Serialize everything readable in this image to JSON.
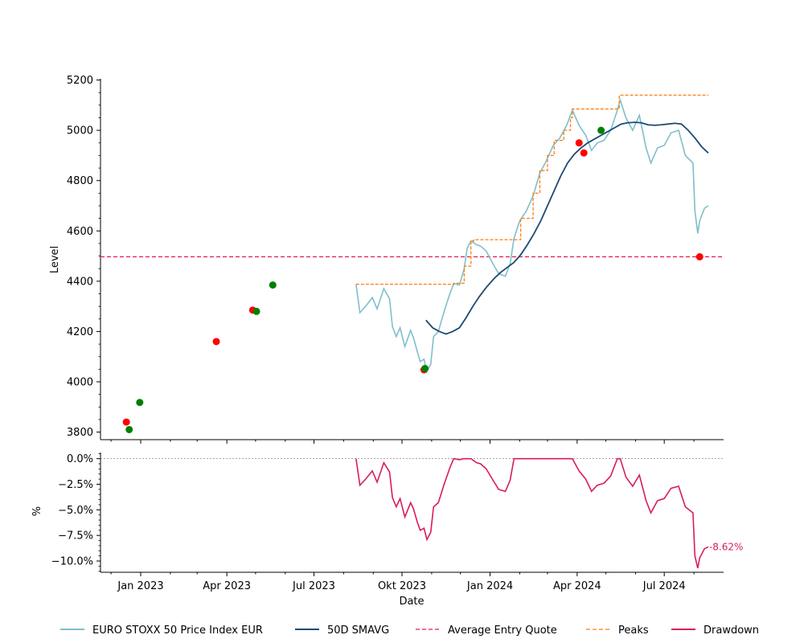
{
  "chart_data": [
    {
      "type": "line",
      "ylabel": "Level",
      "ylim": [
        3770,
        5205
      ],
      "x_ticks": [
        "Jan 2023",
        "Apr 2023",
        "Jul 2023",
        "Okt 2023",
        "Jan 2024",
        "Apr 2024",
        "Jul 2024"
      ],
      "y_ticks": [
        "3800",
        "4000",
        "4200",
        "4400",
        "4600",
        "4800",
        "5000",
        "5200"
      ],
      "avg_entry_quote": 4497,
      "series": [
        {
          "name": "EURO STOXX 50 Price Index EUR",
          "color": "#7fbfca",
          "points": [
            [
              "2023-08-14",
              4388
            ],
            [
              "2023-08-18",
              4275
            ],
            [
              "2023-08-24",
              4300
            ],
            [
              "2023-08-31",
              4335
            ],
            [
              "2023-09-05",
              4290
            ],
            [
              "2023-09-12",
              4370
            ],
            [
              "2023-09-18",
              4330
            ],
            [
              "2023-09-21",
              4220
            ],
            [
              "2023-09-25",
              4180
            ],
            [
              "2023-09-29",
              4215
            ],
            [
              "2023-10-04",
              4140
            ],
            [
              "2023-10-10",
              4205
            ],
            [
              "2023-10-13",
              4175
            ],
            [
              "2023-10-17",
              4120
            ],
            [
              "2023-10-20",
              4080
            ],
            [
              "2023-10-24",
              4090
            ],
            [
              "2023-10-27",
              4040
            ],
            [
              "2023-10-31",
              4070
            ],
            [
              "2023-11-03",
              4180
            ],
            [
              "2023-11-08",
              4200
            ],
            [
              "2023-11-14",
              4280
            ],
            [
              "2023-11-20",
              4350
            ],
            [
              "2023-11-24",
              4390
            ],
            [
              "2023-11-30",
              4385
            ],
            [
              "2023-12-05",
              4450
            ],
            [
              "2023-12-08",
              4530
            ],
            [
              "2023-12-12",
              4560
            ],
            [
              "2023-12-18",
              4545
            ],
            [
              "2023-12-22",
              4540
            ],
            [
              "2023-12-28",
              4520
            ],
            [
              "2024-01-04",
              4470
            ],
            [
              "2024-01-10",
              4430
            ],
            [
              "2024-01-17",
              4420
            ],
            [
              "2024-01-22",
              4470
            ],
            [
              "2024-01-26",
              4570
            ],
            [
              "2024-02-01",
              4640
            ],
            [
              "2024-02-08",
              4680
            ],
            [
              "2024-02-15",
              4740
            ],
            [
              "2024-02-22",
              4830
            ],
            [
              "2024-02-29",
              4880
            ],
            [
              "2024-03-07",
              4940
            ],
            [
              "2024-03-14",
              4970
            ],
            [
              "2024-03-21",
              5020
            ],
            [
              "2024-03-27",
              5080
            ],
            [
              "2024-04-03",
              5020
            ],
            [
              "2024-04-10",
              4980
            ],
            [
              "2024-04-16",
              4920
            ],
            [
              "2024-04-22",
              4950
            ],
            [
              "2024-04-29",
              4960
            ],
            [
              "2024-05-06",
              5000
            ],
            [
              "2024-05-13",
              5080
            ],
            [
              "2024-05-16",
              5120
            ],
            [
              "2024-05-22",
              5050
            ],
            [
              "2024-05-29",
              5000
            ],
            [
              "2024-06-05",
              5060
            ],
            [
              "2024-06-12",
              4930
            ],
            [
              "2024-06-17",
              4870
            ],
            [
              "2024-06-24",
              4930
            ],
            [
              "2024-07-01",
              4940
            ],
            [
              "2024-07-08",
              4990
            ],
            [
              "2024-07-16",
              5000
            ],
            [
              "2024-07-23",
              4900
            ],
            [
              "2024-07-31",
              4870
            ],
            [
              "2024-08-02",
              4680
            ],
            [
              "2024-08-05",
              4590
            ],
            [
              "2024-08-07",
              4640
            ],
            [
              "2024-08-12",
              4690
            ],
            [
              "2024-08-16",
              4700
            ]
          ]
        },
        {
          "name": "50D SMAVG",
          "color": "#1b4a74",
          "points": [
            [
              "2023-10-26",
              4245
            ],
            [
              "2023-11-02",
              4215
            ],
            [
              "2023-11-09",
              4200
            ],
            [
              "2023-11-16",
              4190
            ],
            [
              "2023-11-23",
              4200
            ],
            [
              "2023-11-30",
              4215
            ],
            [
              "2023-12-07",
              4255
            ],
            [
              "2023-12-14",
              4300
            ],
            [
              "2023-12-21",
              4340
            ],
            [
              "2023-12-28",
              4375
            ],
            [
              "2024-01-05",
              4410
            ],
            [
              "2024-01-12",
              4435
            ],
            [
              "2024-01-19",
              4455
            ],
            [
              "2024-01-26",
              4475
            ],
            [
              "2024-02-02",
              4505
            ],
            [
              "2024-02-09",
              4545
            ],
            [
              "2024-02-16",
              4590
            ],
            [
              "2024-02-23",
              4640
            ],
            [
              "2024-03-01",
              4700
            ],
            [
              "2024-03-08",
              4760
            ],
            [
              "2024-03-15",
              4820
            ],
            [
              "2024-03-22",
              4870
            ],
            [
              "2024-03-29",
              4905
            ],
            [
              "2024-04-05",
              4930
            ],
            [
              "2024-04-12",
              4950
            ],
            [
              "2024-04-19",
              4965
            ],
            [
              "2024-04-26",
              4980
            ],
            [
              "2024-05-03",
              4995
            ],
            [
              "2024-05-10",
              5010
            ],
            [
              "2024-05-17",
              5025
            ],
            [
              "2024-05-24",
              5030
            ],
            [
              "2024-05-31",
              5032
            ],
            [
              "2024-06-07",
              5030
            ],
            [
              "2024-06-14",
              5022
            ],
            [
              "2024-06-21",
              5020
            ],
            [
              "2024-06-28",
              5022
            ],
            [
              "2024-07-05",
              5025
            ],
            [
              "2024-07-12",
              5028
            ],
            [
              "2024-07-19",
              5025
            ],
            [
              "2024-07-26",
              5000
            ],
            [
              "2024-08-02",
              4970
            ],
            [
              "2024-08-09",
              4935
            ],
            [
              "2024-08-16",
              4910
            ]
          ]
        },
        {
          "name": "Peaks",
          "color": "#ff7f0e",
          "points": [
            [
              "2023-08-14",
              4388
            ],
            [
              "2023-11-24",
              4392
            ],
            [
              "2023-12-05",
              4460
            ],
            [
              "2023-12-12",
              4560
            ],
            [
              "2023-12-15",
              4565
            ],
            [
              "2024-01-26",
              4565
            ],
            [
              "2024-02-02",
              4650
            ],
            [
              "2024-02-15",
              4750
            ],
            [
              "2024-02-22",
              4840
            ],
            [
              "2024-03-01",
              4900
            ],
            [
              "2024-03-08",
              4960
            ],
            [
              "2024-03-18",
              5000
            ],
            [
              "2024-03-25",
              5050
            ],
            [
              "2024-03-27",
              5085
            ],
            [
              "2024-05-13",
              5085
            ],
            [
              "2024-05-15",
              5140
            ],
            [
              "2024-08-16",
              5140
            ]
          ]
        }
      ],
      "buy_markers": [
        [
          "2022-12-20",
          3810
        ],
        [
          "2022-12-31",
          3918
        ],
        [
          "2023-05-02",
          4280
        ],
        [
          "2023-05-19",
          4385
        ],
        [
          "2023-10-25",
          4053
        ],
        [
          "2024-04-26",
          5000
        ]
      ],
      "sell_markers": [
        [
          "2022-12-17",
          3840
        ],
        [
          "2023-03-21",
          4160
        ],
        [
          "2023-04-28",
          4285
        ],
        [
          "2023-10-24",
          4048
        ],
        [
          "2024-04-03",
          4950
        ],
        [
          "2024-04-08",
          4910
        ],
        [
          "2024-08-07",
          4497
        ]
      ]
    },
    {
      "type": "line",
      "ylabel": "%",
      "ylim": [
        -11.1,
        0.6
      ],
      "y_ticks": [
        "0.0%",
        "−2.5%",
        "−5.0%",
        "−7.5%",
        "−10.0%"
      ],
      "xlabel": "Date",
      "last_label": "-8.62%",
      "series": [
        {
          "name": "Drawdown",
          "color": "#d81b60",
          "points": [
            [
              "2023-08-14",
              0
            ],
            [
              "2023-08-18",
              -2.6
            ],
            [
              "2023-08-24",
              -2.0
            ],
            [
              "2023-08-31",
              -1.2
            ],
            [
              "2023-09-05",
              -2.3
            ],
            [
              "2023-09-12",
              -0.4
            ],
            [
              "2023-09-18",
              -1.3
            ],
            [
              "2023-09-21",
              -3.8
            ],
            [
              "2023-09-25",
              -4.7
            ],
            [
              "2023-09-29",
              -3.9
            ],
            [
              "2023-10-04",
              -5.7
            ],
            [
              "2023-10-10",
              -4.3
            ],
            [
              "2023-10-13",
              -4.9
            ],
            [
              "2023-10-17",
              -6.2
            ],
            [
              "2023-10-20",
              -7.0
            ],
            [
              "2023-10-24",
              -6.8
            ],
            [
              "2023-10-27",
              -7.9
            ],
            [
              "2023-10-31",
              -7.2
            ],
            [
              "2023-11-03",
              -4.7
            ],
            [
              "2023-11-08",
              -4.3
            ],
            [
              "2023-11-14",
              -2.5
            ],
            [
              "2023-11-20",
              -0.9
            ],
            [
              "2023-11-24",
              0
            ],
            [
              "2023-11-30",
              -0.1
            ],
            [
              "2023-12-05",
              0
            ],
            [
              "2023-12-12",
              0
            ],
            [
              "2023-12-18",
              -0.4
            ],
            [
              "2023-12-22",
              -0.5
            ],
            [
              "2023-12-28",
              -1.0
            ],
            [
              "2024-01-04",
              -2.1
            ],
            [
              "2024-01-10",
              -3.0
            ],
            [
              "2024-01-17",
              -3.2
            ],
            [
              "2024-01-22",
              -2.1
            ],
            [
              "2024-01-26",
              0
            ],
            [
              "2024-02-08",
              0
            ],
            [
              "2024-02-22",
              0
            ],
            [
              "2024-03-07",
              0
            ],
            [
              "2024-03-21",
              0
            ],
            [
              "2024-03-27",
              0
            ],
            [
              "2024-04-03",
              -1.2
            ],
            [
              "2024-04-10",
              -2.0
            ],
            [
              "2024-04-16",
              -3.2
            ],
            [
              "2024-04-22",
              -2.6
            ],
            [
              "2024-04-29",
              -2.4
            ],
            [
              "2024-05-06",
              -1.7
            ],
            [
              "2024-05-13",
              0
            ],
            [
              "2024-05-16",
              0
            ],
            [
              "2024-05-22",
              -1.8
            ],
            [
              "2024-05-29",
              -2.7
            ],
            [
              "2024-06-05",
              -1.6
            ],
            [
              "2024-06-12",
              -4.1
            ],
            [
              "2024-06-17",
              -5.3
            ],
            [
              "2024-06-24",
              -4.1
            ],
            [
              "2024-07-01",
              -3.9
            ],
            [
              "2024-07-08",
              -2.9
            ],
            [
              "2024-07-16",
              -2.7
            ],
            [
              "2024-07-23",
              -4.7
            ],
            [
              "2024-07-31",
              -5.3
            ],
            [
              "2024-08-02",
              -9.5
            ],
            [
              "2024-08-05",
              -10.7
            ],
            [
              "2024-08-07",
              -9.7
            ],
            [
              "2024-08-12",
              -8.8
            ],
            [
              "2024-08-16",
              -8.62
            ]
          ]
        }
      ]
    }
  ],
  "legend": [
    {
      "label": "EURO STOXX 50 Price Index EUR",
      "color": "#7fbfca",
      "style": "solid"
    },
    {
      "label": "50D SMAVG",
      "color": "#1b4a74",
      "style": "solid"
    },
    {
      "label": "Average Entry Quote",
      "color": "#e6194b",
      "style": "dashed"
    },
    {
      "label": "Peaks",
      "color": "#ff7f0e",
      "style": "dashed"
    },
    {
      "label": "Drawdown",
      "color": "#d81b60",
      "style": "solid"
    }
  ],
  "colors": {
    "buy": "#008000",
    "sell": "#ff0000",
    "avg_line": "#e6194b",
    "zero_line": "#888888"
  }
}
